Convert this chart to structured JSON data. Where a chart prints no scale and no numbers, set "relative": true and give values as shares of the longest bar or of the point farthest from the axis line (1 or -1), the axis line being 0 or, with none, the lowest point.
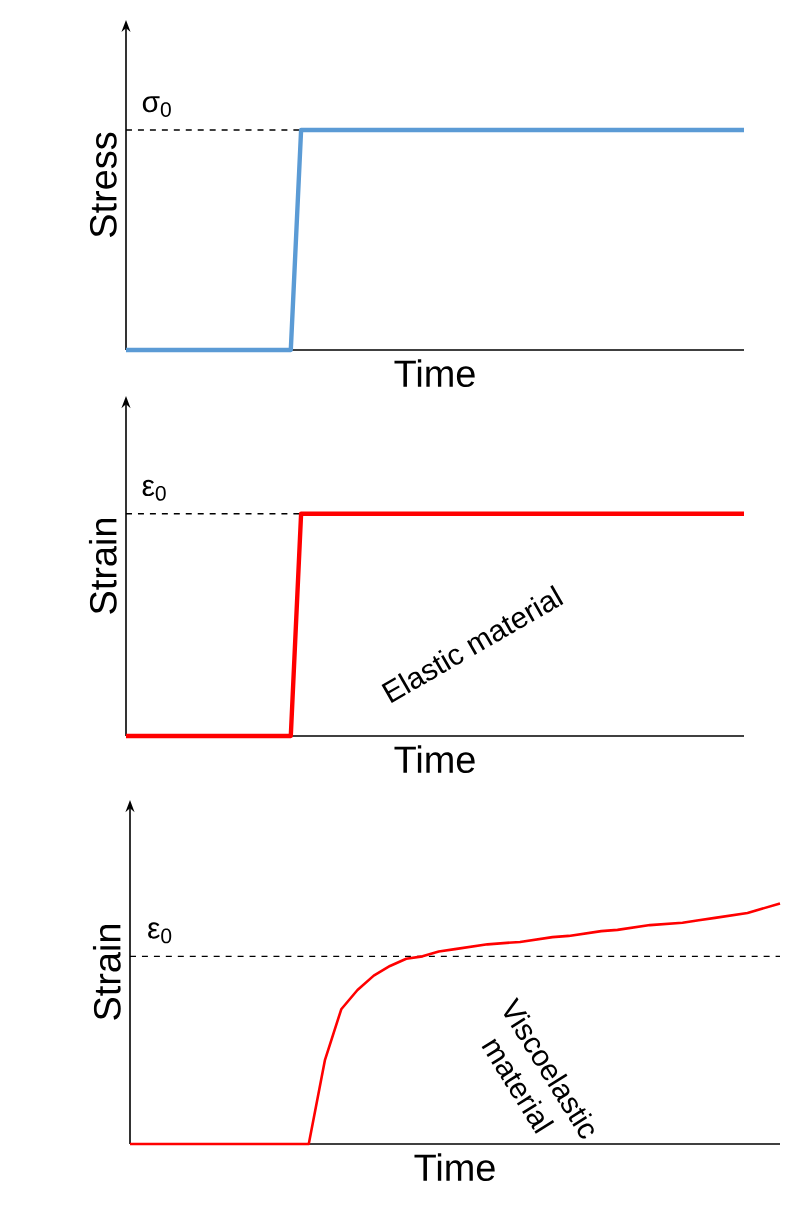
{
  "chart_data": [
    {
      "type": "line",
      "ylabel": "Stress",
      "xlabel": "Time",
      "relative": true,
      "color": "#5b9bd5",
      "categories": [
        null,
        null,
        null,
        null,
        null,
        null,
        null,
        null,
        null,
        null,
        null,
        null,
        null,
        null,
        null,
        null,
        null,
        null,
        null,
        null,
        null,
        null,
        null,
        null,
        null,
        null,
        null,
        null,
        null,
        null,
        null,
        null,
        null,
        null,
        null,
        null,
        null,
        null,
        null,
        null,
        null,
        null,
        null,
        null,
        null,
        null,
        null,
        null,
        null,
        null,
        null,
        null,
        null,
        null,
        null,
        null,
        null,
        null,
        null,
        null,
        null
      ],
      "values": [
        0,
        0,
        0,
        0,
        0,
        0,
        0,
        0,
        0,
        0,
        0,
        0,
        0,
        0,
        0,
        0,
        0,
        1,
        1,
        1,
        1,
        1,
        1,
        1,
        1,
        1,
        1,
        1,
        1,
        1,
        1,
        1,
        1,
        1,
        1,
        1,
        1,
        1,
        1,
        1,
        1,
        1,
        1,
        1,
        1,
        1,
        1,
        1,
        1,
        1,
        1,
        1,
        1,
        1,
        1,
        1,
        1,
        1,
        1,
        1,
        1
      ],
      "ref_lines": [
        {
          "axis": "y",
          "value": 1,
          "label": "σ$_{0}$",
          "color": "#000000",
          "line_style": "dashed"
        }
      ]
    },
    {
      "type": "line",
      "ylabel": "Strain",
      "xlabel": "Time",
      "relative": true,
      "color": "#ff0000",
      "categories": [
        null,
        null,
        null,
        null,
        null,
        null,
        null,
        null,
        null,
        null,
        null,
        null,
        null,
        null,
        null,
        null,
        null,
        null,
        null,
        null,
        null,
        null,
        null,
        null,
        null,
        null,
        null,
        null,
        null,
        null,
        null,
        null,
        null,
        null,
        null,
        null,
        null,
        null,
        null,
        null,
        null,
        null,
        null,
        null,
        null,
        null,
        null,
        null,
        null,
        null,
        null,
        null,
        null,
        null,
        null,
        null,
        null,
        null,
        null,
        null,
        null
      ],
      "values": [
        0,
        0,
        0,
        0,
        0,
        0,
        0,
        0,
        0,
        0,
        0,
        0,
        0,
        0,
        0,
        0,
        0,
        1,
        1,
        1,
        1,
        1,
        1,
        1,
        1,
        1,
        1,
        1,
        1,
        1,
        1,
        1,
        1,
        1,
        1,
        1,
        1,
        1,
        1,
        1,
        1,
        1,
        1,
        1,
        1,
        1,
        1,
        1,
        1,
        1,
        1,
        1,
        1,
        1,
        1,
        1,
        1,
        1,
        1,
        1,
        1
      ],
      "ref_lines": [
        {
          "axis": "y",
          "value": 1,
          "label": "ε$_{0}$",
          "color": "#000000",
          "line_style": "dashed"
        }
      ],
      "annotations": [
        "Elastic material"
      ]
    },
    {
      "type": "line",
      "ylabel": "Strain",
      "xlabel": "Time",
      "relative": true,
      "color": "#ff0000",
      "categories": [
        null,
        null,
        null,
        null,
        null,
        null,
        null,
        null,
        null,
        null,
        null,
        null,
        null,
        null,
        null,
        null,
        null,
        null,
        null,
        null,
        null,
        null,
        null,
        null,
        null,
        null,
        null,
        null,
        null,
        null,
        null,
        null,
        null,
        null,
        null,
        null,
        null,
        null,
        null,
        null,
        null
      ],
      "values": [
        0,
        0,
        0,
        0,
        0,
        0,
        0,
        0,
        0,
        0,
        0,
        0,
        0.35,
        0.56,
        0.64,
        0.7,
        0.74,
        0.77,
        0.78,
        0.8,
        0.81,
        0.82,
        0.83,
        0.835,
        0.84,
        0.85,
        0.86,
        0.865,
        0.875,
        0.885,
        0.89,
        0.9,
        0.91,
        0.915,
        0.92,
        0.93,
        0.94,
        0.95,
        0.96,
        0.98,
        1
      ],
      "ref_lines": [
        {
          "axis": "y",
          "value": 0.78,
          "label": "ε$_{0}$",
          "color": "#000000",
          "line_style": "dashed"
        }
      ],
      "annotations": [
        "Viscoelastic material"
      ]
    }
  ]
}
